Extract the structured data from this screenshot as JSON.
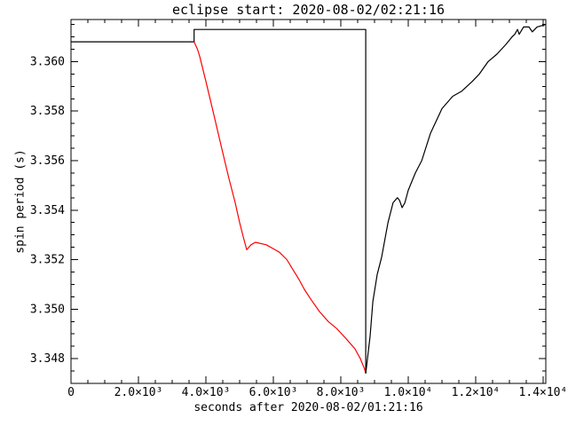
{
  "figure": {
    "title": "eclipse start: 2020-08-02/02:21:16",
    "xlabel": "seconds after 2020-08-02/01:21:16",
    "ylabel": "spin period (s)",
    "colors": {
      "background": "#ffffff",
      "axis": "#000000",
      "in_eclipse_curve": "#ff0000",
      "out_of_eclipse_curve": "#000000"
    }
  },
  "chart_data": {
    "type": "line",
    "title": "eclipse start: 2020-08-02/02:21:16",
    "xlabel": "seconds after 2020-08-02/01:21:16",
    "ylabel": "spin period (s)",
    "xlim": [
      0,
      14080
    ],
    "ylim": [
      3.347,
      3.3617
    ],
    "grid": false,
    "legend": null,
    "x_major_ticks": [
      {
        "value": 0,
        "label": "0"
      },
      {
        "value": 2000,
        "label": "2.0×10³"
      },
      {
        "value": 4000,
        "label": "4.0×10³"
      },
      {
        "value": 6000,
        "label": "6.0×10³"
      },
      {
        "value": 8000,
        "label": "8.0×10³"
      },
      {
        "value": 10000,
        "label": "1.0×10⁴"
      },
      {
        "value": 12000,
        "label": "1.2×10⁴"
      },
      {
        "value": 14000,
        "label": "1.4×10⁴"
      }
    ],
    "x_minor_step": 500,
    "y_major_ticks": [
      {
        "value": 3.348,
        "label": "3.348"
      },
      {
        "value": 3.35,
        "label": "3.350"
      },
      {
        "value": 3.352,
        "label": "3.352"
      },
      {
        "value": 3.354,
        "label": "3.354"
      },
      {
        "value": 3.356,
        "label": "3.356"
      },
      {
        "value": 3.358,
        "label": "3.358"
      },
      {
        "value": 3.36,
        "label": "3.360"
      }
    ],
    "y_minor_step": 0.0005,
    "series": [
      {
        "name": "pre-eclipse-spin-period",
        "color": "#000000",
        "points": [
          [
            0,
            3.3608
          ],
          [
            3650,
            3.3608
          ]
        ]
      },
      {
        "name": "eclipse-window-marker-box",
        "color": "#000000",
        "points": [
          [
            3650,
            3.3608
          ],
          [
            3650,
            3.3613
          ],
          [
            8740,
            3.3613
          ],
          [
            8740,
            3.3474
          ]
        ]
      },
      {
        "name": "in-eclipse-spin-period",
        "color": "#ff0000",
        "points": [
          [
            3650,
            3.3608
          ],
          [
            3750,
            3.3605
          ],
          [
            3820,
            3.3602
          ],
          [
            4000,
            3.3592
          ],
          [
            4210,
            3.358
          ],
          [
            4470,
            3.3565
          ],
          [
            4680,
            3.3553
          ],
          [
            4870,
            3.3543
          ],
          [
            5000,
            3.3535
          ],
          [
            5110,
            3.3529
          ],
          [
            5210,
            3.3524
          ],
          [
            5340,
            3.3526
          ],
          [
            5470,
            3.3527
          ],
          [
            5790,
            3.3526
          ],
          [
            6050,
            3.3524
          ],
          [
            6180,
            3.3523
          ],
          [
            6400,
            3.352
          ],
          [
            6580,
            3.3516
          ],
          [
            6760,
            3.3512
          ],
          [
            6920,
            3.3508
          ],
          [
            7110,
            3.3504
          ],
          [
            7370,
            3.3499
          ],
          [
            7630,
            3.3495
          ],
          [
            7890,
            3.3492
          ],
          [
            8160,
            3.3488
          ],
          [
            8420,
            3.3484
          ],
          [
            8580,
            3.348
          ],
          [
            8700,
            3.3476
          ],
          [
            8740,
            3.3474
          ]
        ]
      },
      {
        "name": "post-eclipse-spin-period",
        "color": "#000000",
        "points": [
          [
            8740,
            3.3474
          ],
          [
            8870,
            3.3489
          ],
          [
            8950,
            3.3503
          ],
          [
            9080,
            3.3514
          ],
          [
            9210,
            3.3521
          ],
          [
            9400,
            3.3535
          ],
          [
            9550,
            3.3543
          ],
          [
            9680,
            3.3545
          ],
          [
            9740,
            3.3544
          ],
          [
            9820,
            3.3541
          ],
          [
            9900,
            3.3543
          ],
          [
            10000,
            3.3548
          ],
          [
            10210,
            3.3555
          ],
          [
            10400,
            3.356
          ],
          [
            10660,
            3.3571
          ],
          [
            11000,
            3.3581
          ],
          [
            11320,
            3.3586
          ],
          [
            11580,
            3.3588
          ],
          [
            11900,
            3.3592
          ],
          [
            12110,
            3.3595
          ],
          [
            12370,
            3.36
          ],
          [
            12630,
            3.3603
          ],
          [
            12900,
            3.3607
          ],
          [
            13080,
            3.361
          ],
          [
            13160,
            3.3611
          ],
          [
            13240,
            3.3613
          ],
          [
            13290,
            3.3611
          ],
          [
            13420,
            3.3614
          ],
          [
            13580,
            3.3614
          ],
          [
            13680,
            3.3612
          ],
          [
            13820,
            3.3614
          ],
          [
            14080,
            3.3615
          ]
        ]
      }
    ]
  }
}
